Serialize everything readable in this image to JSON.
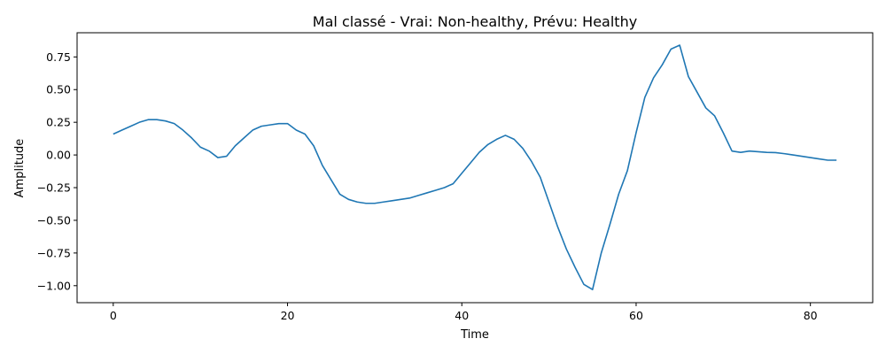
{
  "chart_data": {
    "type": "line",
    "title": "Mal classé - Vrai: Non-healthy, Prévu: Healthy",
    "xlabel": "Time",
    "ylabel": "Amplitude",
    "xlim": [
      -4.15,
      87.15
    ],
    "ylim": [
      -1.13,
      0.935
    ],
    "xticks": [
      0,
      20,
      40,
      60,
      80
    ],
    "yticks": [
      -1.0,
      -0.75,
      -0.5,
      -0.25,
      0.0,
      0.25,
      0.5,
      0.75
    ],
    "ytick_labels": [
      "−1.00",
      "−0.75",
      "−0.50",
      "−0.25",
      "0.00",
      "0.25",
      "0.50",
      "0.75"
    ],
    "grid": false,
    "legend": "none",
    "series": [
      {
        "color": "#1f77b4",
        "x": [
          0,
          1,
          2,
          3,
          4,
          5,
          6,
          7,
          8,
          9,
          10,
          11,
          12,
          13,
          14,
          15,
          16,
          17,
          18,
          19,
          20,
          21,
          22,
          23,
          24,
          25,
          26,
          27,
          28,
          29,
          30,
          31,
          32,
          33,
          34,
          35,
          36,
          37,
          38,
          39,
          40,
          41,
          42,
          43,
          44,
          45,
          46,
          47,
          48,
          49,
          50,
          51,
          52,
          53,
          54,
          55,
          56,
          57,
          58,
          59,
          60,
          61,
          62,
          63,
          64,
          65,
          66,
          67,
          68,
          69,
          70,
          71,
          72,
          73,
          74,
          75,
          76,
          77,
          78,
          79,
          80,
          81,
          82,
          83
        ],
        "y": [
          0.16,
          0.19,
          0.22,
          0.25,
          0.27,
          0.27,
          0.26,
          0.24,
          0.19,
          0.13,
          0.06,
          0.03,
          -0.02,
          -0.01,
          0.07,
          0.13,
          0.19,
          0.22,
          0.23,
          0.24,
          0.24,
          0.19,
          0.16,
          0.07,
          -0.08,
          -0.19,
          -0.3,
          -0.34,
          -0.36,
          -0.37,
          -0.37,
          -0.36,
          -0.35,
          -0.34,
          -0.33,
          -0.31,
          -0.29,
          -0.27,
          -0.25,
          -0.22,
          -0.14,
          -0.06,
          0.02,
          0.08,
          0.12,
          0.15,
          0.12,
          0.05,
          -0.05,
          -0.17,
          -0.36,
          -0.55,
          -0.72,
          -0.86,
          -0.99,
          -1.03,
          -0.75,
          -0.53,
          -0.3,
          -0.12,
          0.17,
          0.44,
          0.59,
          0.69,
          0.81,
          0.84,
          0.6,
          0.48,
          0.36,
          0.3,
          0.17,
          0.03,
          0.02,
          0.03,
          0.025,
          0.02,
          0.018,
          0.01,
          0.0,
          -0.01,
          -0.02,
          -0.03,
          -0.04,
          -0.04
        ]
      }
    ]
  }
}
